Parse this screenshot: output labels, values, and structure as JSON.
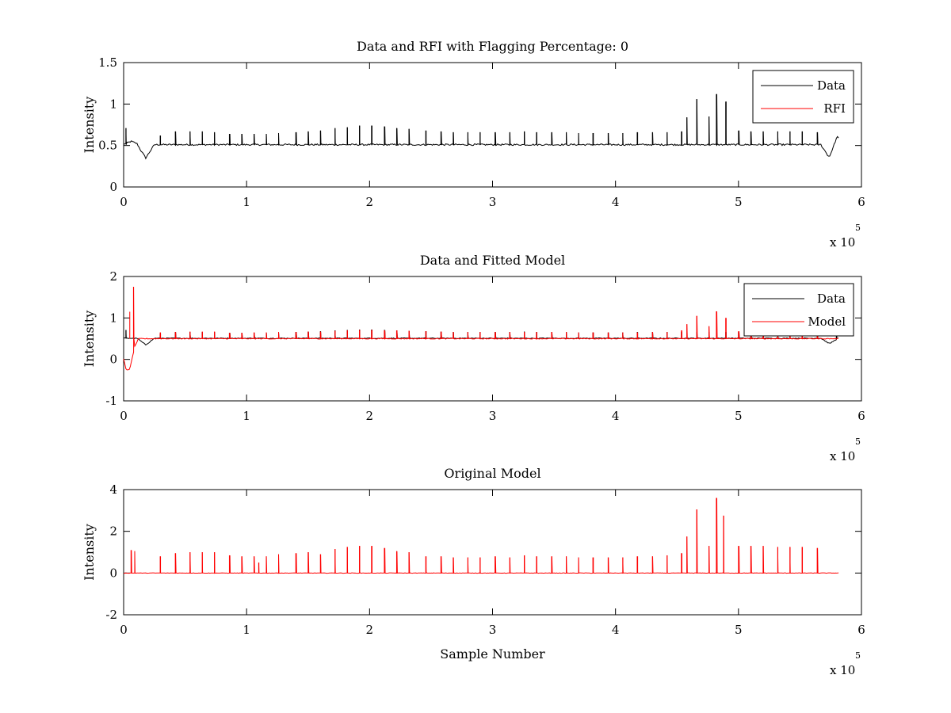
{
  "chart_data": [
    {
      "type": "line",
      "title": "Data and RFI with Flagging Percentage: 0",
      "xlabel": "",
      "ylabel": "Intensity",
      "xlim": [
        0,
        600000
      ],
      "ylim": [
        0,
        1.5
      ],
      "xtick_labels": [
        "0",
        "1",
        "2",
        "3",
        "4",
        "5",
        "6"
      ],
      "ytick_labels": [
        "0",
        "0.5",
        "1",
        "1.5"
      ],
      "ytick_values": [
        0,
        0.5,
        1,
        1.5
      ],
      "x_exponent": "x 10",
      "x_exponent_power": "5",
      "legend_position": "top-right",
      "grid": false,
      "series": [
        {
          "name": "Data",
          "color": "#000000",
          "baseline": 0.51,
          "x_range": [
            0,
            582000
          ],
          "dips": [
            [
              6000,
              0.55
            ],
            [
              18000,
              0.35
            ],
            [
              574000,
              0.35
            ],
            [
              580000,
              0.62
            ]
          ],
          "spikes": [
            [
              2000,
              0.71
            ],
            [
              30000,
              0.62
            ],
            [
              42000,
              0.67
            ],
            [
              54000,
              0.67
            ],
            [
              64000,
              0.67
            ],
            [
              74000,
              0.66
            ],
            [
              86000,
              0.64
            ],
            [
              96000,
              0.64
            ],
            [
              106000,
              0.64
            ],
            [
              116000,
              0.64
            ],
            [
              126000,
              0.65
            ],
            [
              140000,
              0.66
            ],
            [
              150000,
              0.67
            ],
            [
              160000,
              0.68
            ],
            [
              172000,
              0.71
            ],
            [
              182000,
              0.72
            ],
            [
              192000,
              0.74
            ],
            [
              202000,
              0.74
            ],
            [
              212000,
              0.73
            ],
            [
              222000,
              0.71
            ],
            [
              232000,
              0.7
            ],
            [
              246000,
              0.68
            ],
            [
              258000,
              0.67
            ],
            [
              268000,
              0.66
            ],
            [
              280000,
              0.66
            ],
            [
              290000,
              0.66
            ],
            [
              302000,
              0.66
            ],
            [
              314000,
              0.66
            ],
            [
              326000,
              0.67
            ],
            [
              336000,
              0.66
            ],
            [
              348000,
              0.66
            ],
            [
              360000,
              0.66
            ],
            [
              370000,
              0.65
            ],
            [
              382000,
              0.65
            ],
            [
              394000,
              0.65
            ],
            [
              406000,
              0.65
            ],
            [
              418000,
              0.66
            ],
            [
              430000,
              0.66
            ],
            [
              442000,
              0.66
            ],
            [
              454000,
              0.67
            ],
            [
              458000,
              0.84
            ],
            [
              466000,
              1.06
            ],
            [
              476000,
              0.85
            ],
            [
              482000,
              1.12
            ],
            [
              490000,
              1.03
            ],
            [
              500000,
              0.68
            ],
            [
              510000,
              0.67
            ],
            [
              520000,
              0.67
            ],
            [
              532000,
              0.67
            ],
            [
              542000,
              0.67
            ],
            [
              552000,
              0.67
            ],
            [
              564000,
              0.66
            ]
          ]
        },
        {
          "name": "RFI",
          "color": "#ff0000",
          "values": []
        }
      ]
    },
    {
      "type": "line",
      "title": "Data and Fitted Model",
      "xlabel": "",
      "ylabel": "Intensity",
      "xlim": [
        0,
        600000
      ],
      "ylim": [
        -1,
        2
      ],
      "xtick_labels": [
        "0",
        "1",
        "2",
        "3",
        "4",
        "5",
        "6"
      ],
      "ytick_labels": [
        "-1",
        "0",
        "1",
        "2"
      ],
      "ytick_values": [
        -1,
        0,
        1,
        2
      ],
      "x_exponent": "x 10",
      "x_exponent_power": "5",
      "legend_position": "top-right",
      "grid": false,
      "series": [
        {
          "name": "Data",
          "color": "#000000",
          "baseline": 0.51,
          "x_range": [
            0,
            582000
          ],
          "dips": [
            [
              18000,
              0.35
            ],
            [
              574000,
              0.38
            ]
          ],
          "spikes": [
            [
              2000,
              0.71
            ],
            [
              30000,
              0.62
            ],
            [
              42000,
              0.66
            ],
            [
              54000,
              0.66
            ],
            [
              64000,
              0.66
            ],
            [
              74000,
              0.66
            ],
            [
              86000,
              0.64
            ],
            [
              96000,
              0.64
            ],
            [
              106000,
              0.64
            ],
            [
              116000,
              0.64
            ],
            [
              126000,
              0.65
            ],
            [
              140000,
              0.66
            ],
            [
              150000,
              0.67
            ],
            [
              160000,
              0.68
            ],
            [
              172000,
              0.7
            ],
            [
              182000,
              0.71
            ],
            [
              192000,
              0.72
            ],
            [
              202000,
              0.72
            ],
            [
              212000,
              0.71
            ],
            [
              222000,
              0.7
            ],
            [
              232000,
              0.69
            ],
            [
              246000,
              0.68
            ],
            [
              258000,
              0.67
            ],
            [
              268000,
              0.66
            ],
            [
              280000,
              0.66
            ],
            [
              290000,
              0.66
            ],
            [
              302000,
              0.66
            ],
            [
              314000,
              0.66
            ],
            [
              326000,
              0.67
            ],
            [
              336000,
              0.66
            ],
            [
              348000,
              0.66
            ],
            [
              360000,
              0.66
            ],
            [
              370000,
              0.65
            ],
            [
              382000,
              0.65
            ],
            [
              394000,
              0.65
            ],
            [
              406000,
              0.65
            ],
            [
              418000,
              0.66
            ],
            [
              430000,
              0.66
            ],
            [
              442000,
              0.66
            ],
            [
              454000,
              0.66
            ],
            [
              466000,
              0.66
            ],
            [
              476000,
              0.66
            ],
            [
              490000,
              0.66
            ],
            [
              500000,
              0.66
            ],
            [
              510000,
              0.66
            ],
            [
              520000,
              0.66
            ],
            [
              532000,
              0.66
            ],
            [
              542000,
              0.66
            ],
            [
              552000,
              0.66
            ],
            [
              564000,
              0.66
            ],
            [
              580000,
              0.62
            ]
          ]
        },
        {
          "name": "Model",
          "color": "#ff0000",
          "baseline": 0.5,
          "x_range": [
            0,
            582000
          ],
          "dips": [
            [
              2000,
              0.0
            ],
            [
              5000,
              0.05
            ]
          ],
          "spikes": [
            [
              5000,
              1.15
            ],
            [
              8000,
              1.75
            ],
            [
              30000,
              0.65
            ],
            [
              42000,
              0.66
            ],
            [
              54000,
              0.67
            ],
            [
              64000,
              0.67
            ],
            [
              74000,
              0.67
            ],
            [
              86000,
              0.64
            ],
            [
              96000,
              0.64
            ],
            [
              106000,
              0.65
            ],
            [
              116000,
              0.65
            ],
            [
              126000,
              0.66
            ],
            [
              140000,
              0.66
            ],
            [
              150000,
              0.67
            ],
            [
              160000,
              0.67
            ],
            [
              172000,
              0.69
            ],
            [
              182000,
              0.7
            ],
            [
              192000,
              0.71
            ],
            [
              202000,
              0.71
            ],
            [
              212000,
              0.7
            ],
            [
              222000,
              0.7
            ],
            [
              232000,
              0.69
            ],
            [
              246000,
              0.68
            ],
            [
              258000,
              0.67
            ],
            [
              268000,
              0.66
            ],
            [
              280000,
              0.66
            ],
            [
              290000,
              0.66
            ],
            [
              302000,
              0.66
            ],
            [
              314000,
              0.66
            ],
            [
              326000,
              0.66
            ],
            [
              336000,
              0.66
            ],
            [
              348000,
              0.66
            ],
            [
              360000,
              0.66
            ],
            [
              370000,
              0.65
            ],
            [
              382000,
              0.65
            ],
            [
              394000,
              0.65
            ],
            [
              406000,
              0.65
            ],
            [
              418000,
              0.65
            ],
            [
              430000,
              0.66
            ],
            [
              442000,
              0.66
            ],
            [
              454000,
              0.7
            ],
            [
              458000,
              0.85
            ],
            [
              466000,
              1.05
            ],
            [
              476000,
              0.8
            ],
            [
              482000,
              1.16
            ],
            [
              490000,
              1.0
            ],
            [
              500000,
              0.68
            ],
            [
              510000,
              0.67
            ],
            [
              520000,
              0.66
            ],
            [
              532000,
              0.66
            ],
            [
              542000,
              0.66
            ],
            [
              552000,
              0.66
            ],
            [
              564000,
              0.66
            ]
          ]
        }
      ]
    },
    {
      "type": "line",
      "title": "Original Model",
      "xlabel": "Sample Number",
      "ylabel": "Intensity",
      "xlim": [
        0,
        600000
      ],
      "ylim": [
        -2,
        4
      ],
      "xtick_labels": [
        "0",
        "1",
        "2",
        "3",
        "4",
        "5",
        "6"
      ],
      "ytick_labels": [
        "-2",
        "0",
        "2",
        "4"
      ],
      "ytick_values": [
        -2,
        0,
        2,
        4
      ],
      "x_exponent": "x 10",
      "x_exponent_power": "5",
      "legend_position": "none",
      "grid": false,
      "series": [
        {
          "color": "#ff0000",
          "baseline": 0.0,
          "x_range": [
            0,
            582000
          ],
          "dips": [],
          "spikes": [
            [
              6000,
              1.1
            ],
            [
              9000,
              1.05
            ],
            [
              30000,
              0.8
            ],
            [
              42000,
              0.95
            ],
            [
              54000,
              1.0
            ],
            [
              64000,
              1.0
            ],
            [
              74000,
              1.0
            ],
            [
              86000,
              0.85
            ],
            [
              96000,
              0.8
            ],
            [
              106000,
              0.8
            ],
            [
              110000,
              0.5
            ],
            [
              116000,
              0.8
            ],
            [
              126000,
              0.9
            ],
            [
              140000,
              0.95
            ],
            [
              150000,
              1.0
            ],
            [
              160000,
              0.9
            ],
            [
              172000,
              1.15
            ],
            [
              182000,
              1.25
            ],
            [
              192000,
              1.3
            ],
            [
              202000,
              1.3
            ],
            [
              212000,
              1.2
            ],
            [
              222000,
              1.05
            ],
            [
              232000,
              1.0
            ],
            [
              246000,
              0.8
            ],
            [
              258000,
              0.8
            ],
            [
              268000,
              0.75
            ],
            [
              280000,
              0.75
            ],
            [
              290000,
              0.75
            ],
            [
              302000,
              0.8
            ],
            [
              314000,
              0.75
            ],
            [
              326000,
              0.85
            ],
            [
              336000,
              0.8
            ],
            [
              348000,
              0.8
            ],
            [
              360000,
              0.8
            ],
            [
              370000,
              0.75
            ],
            [
              382000,
              0.75
            ],
            [
              394000,
              0.75
            ],
            [
              406000,
              0.75
            ],
            [
              418000,
              0.8
            ],
            [
              430000,
              0.8
            ],
            [
              442000,
              0.85
            ],
            [
              454000,
              0.95
            ],
            [
              458000,
              1.75
            ],
            [
              466000,
              3.05
            ],
            [
              476000,
              1.3
            ],
            [
              482000,
              3.6
            ],
            [
              488000,
              2.75
            ],
            [
              500000,
              1.3
            ],
            [
              510000,
              1.3
            ],
            [
              520000,
              1.3
            ],
            [
              532000,
              1.25
            ],
            [
              542000,
              1.25
            ],
            [
              552000,
              1.25
            ],
            [
              564000,
              1.2
            ]
          ]
        }
      ]
    }
  ]
}
